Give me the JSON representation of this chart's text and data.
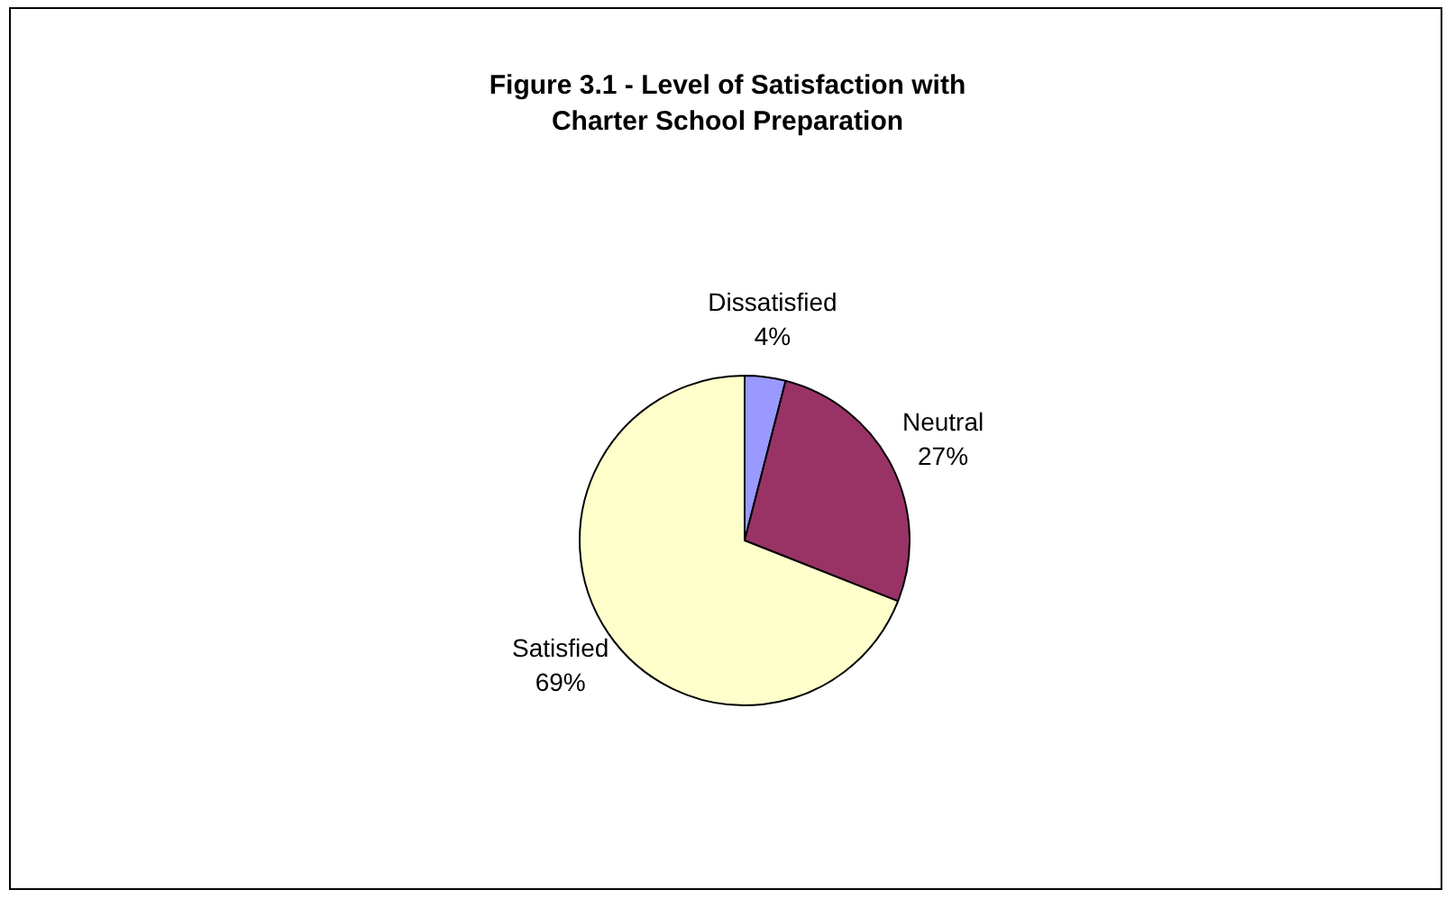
{
  "chart_data": {
    "type": "pie",
    "title": "Figure 3.1 - Level of Satisfaction with Charter School Preparation",
    "categories": [
      "Dissatisfied",
      "Neutral",
      "Satisfied"
    ],
    "values": [
      4,
      27,
      69
    ],
    "colors": [
      "#9999ff",
      "#993366",
      "#ffffcc"
    ],
    "value_labels": [
      "4%",
      "27%",
      "69%"
    ],
    "legend": false
  }
}
